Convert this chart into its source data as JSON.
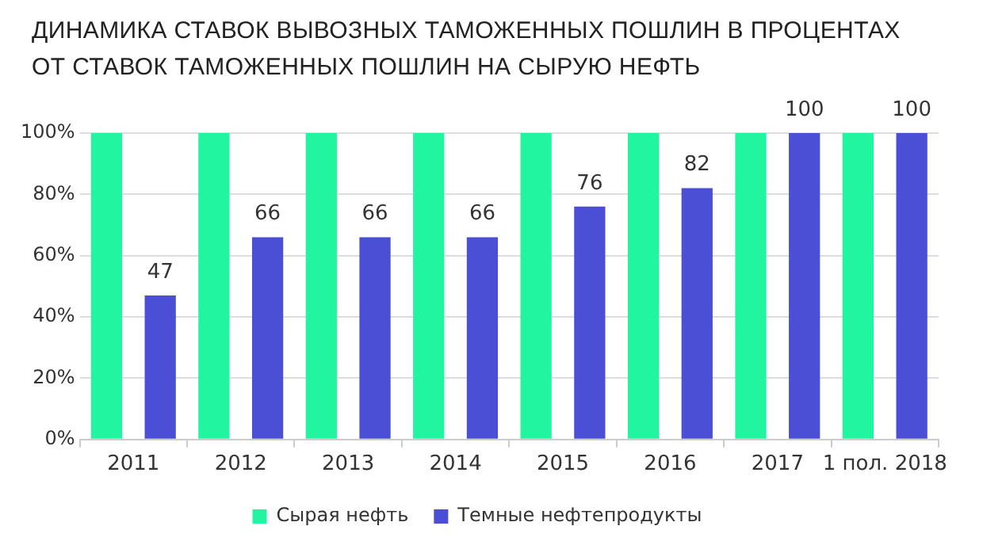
{
  "chart_data": {
    "type": "bar",
    "title": "ДИНАМИКА СТАВОК ВЫВОЗНЫХ ТАМОЖЕННЫХ ПОШЛИН В ПРОЦЕНТАХ ОТ СТАВОК ТАМОЖЕННЫХ ПОШЛИН НА СЫРУЮ НЕФТЬ",
    "categories": [
      "2011",
      "2012",
      "2013",
      "2014",
      "2015",
      "2016",
      "2017",
      "1 пол. 2018"
    ],
    "series": [
      {
        "name": "Сырая нефть",
        "color": "#22f5a0",
        "values": [
          100,
          100,
          100,
          100,
          100,
          100,
          100,
          100
        ]
      },
      {
        "name": "Темные нефтепродукты",
        "color": "#4b4fd6",
        "values": [
          47,
          66,
          66,
          66,
          76,
          82,
          100,
          100
        ],
        "value_labels": [
          "47",
          "66",
          "66",
          "66",
          "76",
          "82",
          "100",
          "100"
        ]
      }
    ],
    "ylim": [
      0,
      100
    ],
    "yticks": [
      {
        "value": 0,
        "label": "0%"
      },
      {
        "value": 20,
        "label": "20%"
      },
      {
        "value": 40,
        "label": "40%"
      },
      {
        "value": 60,
        "label": "60%"
      },
      {
        "value": 80,
        "label": "80%"
      },
      {
        "value": 100,
        "label": "100%"
      }
    ],
    "grid": "y",
    "legend": "bottom"
  }
}
